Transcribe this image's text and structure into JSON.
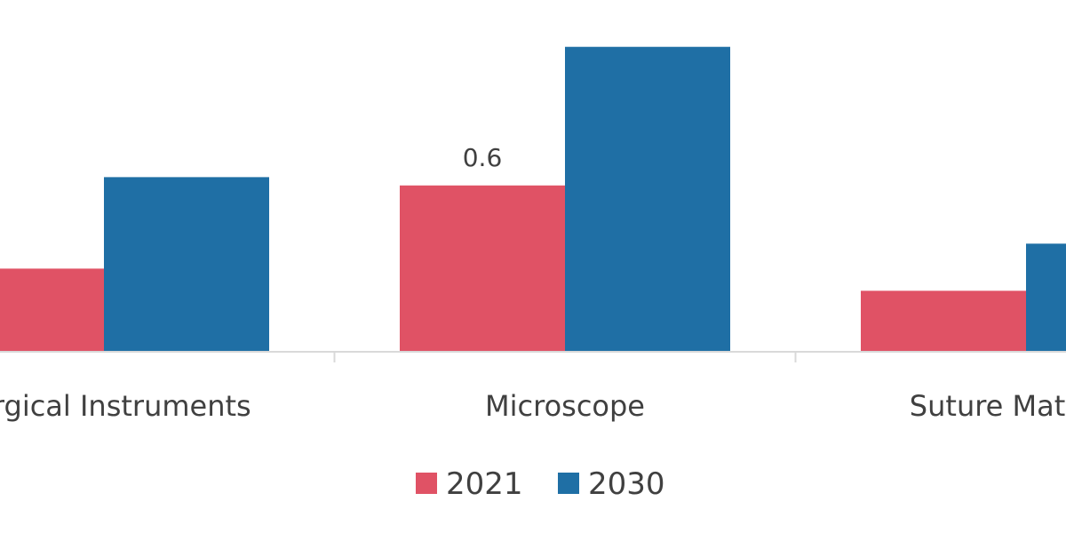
{
  "chart_data": {
    "type": "bar",
    "categories": [
      "Surgical Instruments",
      "Microscope",
      "Suture Materials"
    ],
    "series": [
      {
        "name": "2021",
        "values": [
          0.3,
          0.6,
          0.22
        ]
      },
      {
        "name": "2030",
        "values": [
          0.63,
          1.1,
          0.39
        ]
      }
    ],
    "data_labels": [
      {
        "series": "2021",
        "category": "Microscope",
        "text": "0.6"
      }
    ],
    "title": "",
    "xlabel": "",
    "ylabel": "",
    "ylim": [
      0,
      1.16
    ],
    "grid": false,
    "legend_position": "bottom",
    "colors": {
      "2021": "#e05265",
      "2030": "#1f6fa5",
      "axis": "#d9d9d9",
      "text": "#404040"
    }
  }
}
